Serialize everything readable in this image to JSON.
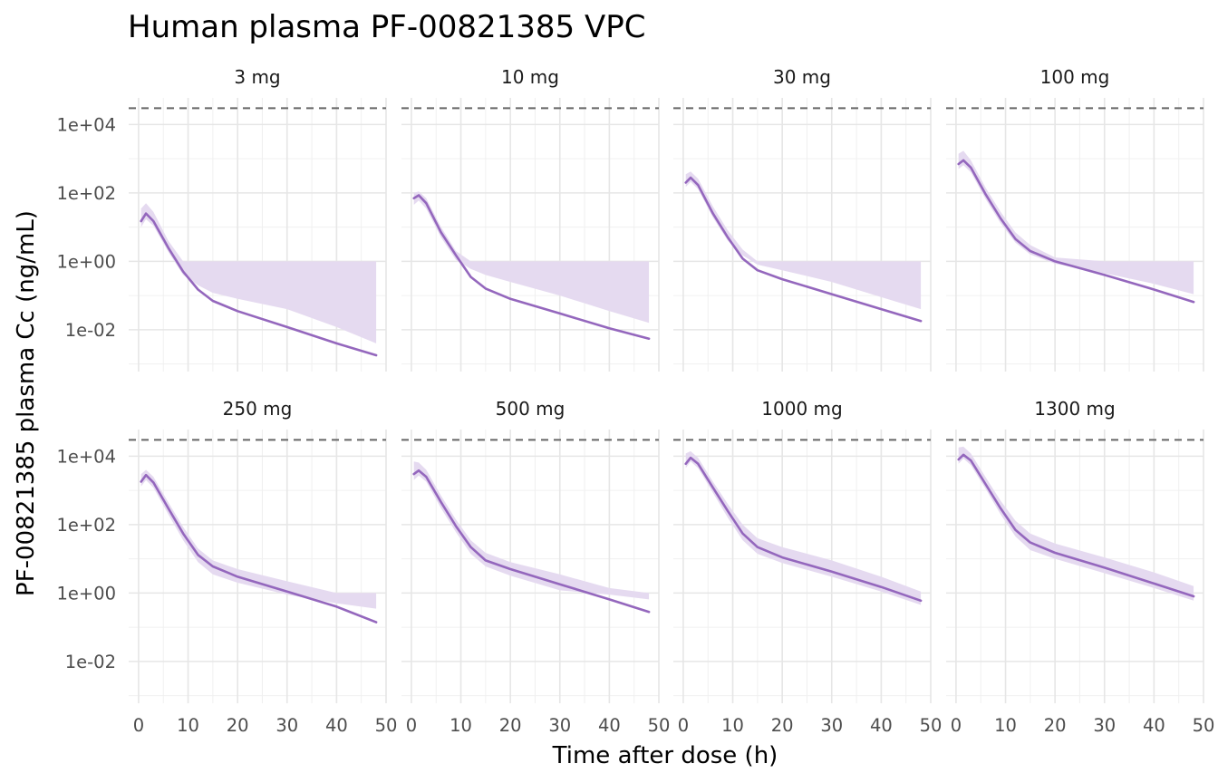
{
  "chart_data": {
    "type": "line",
    "title": "Human plasma PF-00821385 VPC",
    "xlabel": "Time after dose (h)",
    "ylabel": "PF-00821385 plasma Cc (ng/mL)",
    "x_scale": "linear",
    "y_scale": "log10",
    "xlim": [
      -2,
      50
    ],
    "ylim": [
      0.0006,
      60000
    ],
    "x_ticks": [
      "0",
      "10",
      "20",
      "30",
      "40",
      "50"
    ],
    "x_tick_values": [
      0,
      10,
      20,
      30,
      40,
      50
    ],
    "y_ticks": [
      "1e-02",
      "1e+00",
      "1e+02",
      "1e+04"
    ],
    "y_tick_values": [
      0.01,
      1,
      100,
      10000
    ],
    "reference_line": {
      "y": 30000,
      "style": "dashed",
      "color": "#666666"
    },
    "grid": true,
    "line_color": "#9467bd",
    "band_color": "#e5daf0",
    "x": [
      0.5,
      1.5,
      3,
      6,
      9,
      12,
      15,
      20,
      30,
      40,
      48
    ],
    "panels": [
      {
        "name": "3 mg",
        "median": [
          15,
          25,
          15,
          2.5,
          0.5,
          0.15,
          0.07,
          0.035,
          0.012,
          0.004,
          0.0018
        ],
        "lower": [
          10,
          17,
          11,
          1.9,
          0.4,
          0.12,
          0.055,
          0.028,
          0.009,
          0.003,
          0.0014
        ],
        "upper": [
          35,
          50,
          28,
          4,
          1,
          1,
          1,
          1,
          1,
          1,
          1
        ],
        "band_bottom": [
          10,
          17,
          11,
          1.9,
          0.4,
          0.2,
          0.12,
          0.08,
          0.04,
          0.012,
          0.004
        ]
      },
      {
        "name": "10 mg",
        "median": [
          70,
          85,
          50,
          7,
          1.5,
          0.35,
          0.16,
          0.08,
          0.03,
          0.011,
          0.0055
        ],
        "lower": [
          45,
          60,
          35,
          5,
          1.1,
          0.28,
          0.13,
          0.065,
          0.024,
          0.009,
          0.0045
        ],
        "upper": [
          100,
          110,
          70,
          10,
          2,
          1,
          1,
          1,
          1,
          1,
          1
        ],
        "band_bottom": [
          45,
          60,
          35,
          5,
          1.1,
          0.6,
          0.4,
          0.25,
          0.1,
          0.035,
          0.016
        ]
      },
      {
        "name": "30 mg",
        "median": [
          200,
          280,
          170,
          25,
          5,
          1.2,
          0.55,
          0.3,
          0.11,
          0.04,
          0.018
        ],
        "lower": [
          150,
          210,
          130,
          19,
          4,
          0.95,
          0.45,
          0.25,
          0.09,
          0.033,
          0.015
        ],
        "upper": [
          350,
          420,
          260,
          40,
          8,
          2.2,
          1,
          1,
          1,
          1,
          1
        ],
        "band_bottom": [
          150,
          210,
          130,
          19,
          4,
          1.5,
          0.8,
          0.55,
          0.25,
          0.09,
          0.04
        ]
      },
      {
        "name": "100 mg",
        "median": [
          700,
          900,
          550,
          90,
          18,
          4.5,
          2,
          1,
          0.4,
          0.15,
          0.065
        ],
        "lower": [
          500,
          650,
          400,
          65,
          13,
          3.5,
          1.6,
          0.85,
          0.33,
          0.12,
          0.055
        ],
        "upper": [
          1400,
          1700,
          900,
          140,
          28,
          7,
          3,
          1.3,
          1,
          1,
          1
        ],
        "band_bottom": [
          500,
          650,
          400,
          65,
          13,
          3.5,
          1.6,
          0.85,
          0.45,
          0.22,
          0.11
        ]
      },
      {
        "name": "250 mg",
        "median": [
          1800,
          2800,
          1700,
          300,
          55,
          13,
          6,
          3,
          1.1,
          0.4,
          0.14
        ],
        "lower": [
          1300,
          2000,
          1200,
          200,
          35,
          8,
          3.5,
          2,
          0.8,
          0.3,
          0.11
        ],
        "upper": [
          3000,
          4000,
          2500,
          450,
          85,
          20,
          9,
          5,
          2.2,
          1,
          1
        ],
        "band_bottom": [
          1300,
          2000,
          1200,
          200,
          35,
          8,
          3.5,
          2,
          0.9,
          0.5,
          0.35
        ]
      },
      {
        "name": "500 mg",
        "median": [
          3000,
          3800,
          2500,
          450,
          90,
          22,
          9,
          5,
          1.8,
          0.65,
          0.28
        ],
        "lower": [
          2000,
          2700,
          1800,
          300,
          60,
          14,
          6,
          3.2,
          1.2,
          0.5,
          0.22
        ],
        "upper": [
          7000,
          6500,
          4000,
          700,
          140,
          35,
          15,
          8,
          3.5,
          1.4,
          1
        ],
        "band_bottom": [
          2000,
          2700,
          1800,
          300,
          60,
          14,
          6,
          3.2,
          1.2,
          0.9,
          0.65
        ]
      },
      {
        "name": "1000 mg",
        "median": [
          6000,
          9000,
          6000,
          1200,
          250,
          55,
          22,
          11,
          4.2,
          1.5,
          0.6
        ],
        "lower": [
          4500,
          7000,
          4500,
          850,
          160,
          35,
          14,
          7.5,
          3,
          1.1,
          0.45
        ],
        "upper": [
          12000,
          14000,
          9000,
          1800,
          400,
          100,
          40,
          22,
          9,
          3,
          1.1
        ],
        "band_bottom": [
          4500,
          7000,
          4500,
          850,
          160,
          35,
          14,
          7.5,
          3,
          1.1,
          0.45
        ]
      },
      {
        "name": "1300 mg",
        "median": [
          8000,
          11000,
          7500,
          1500,
          300,
          70,
          30,
          15,
          5.5,
          1.9,
          0.8
        ],
        "lower": [
          6000,
          8500,
          5500,
          1100,
          200,
          45,
          18,
          10,
          3.8,
          1.4,
          0.6
        ],
        "upper": [
          18000,
          19000,
          12000,
          2400,
          500,
          130,
          55,
          28,
          11,
          4,
          1.6
        ],
        "band_bottom": [
          6000,
          8500,
          5500,
          1100,
          200,
          45,
          18,
          10,
          3.8,
          1.4,
          0.6
        ]
      }
    ]
  }
}
